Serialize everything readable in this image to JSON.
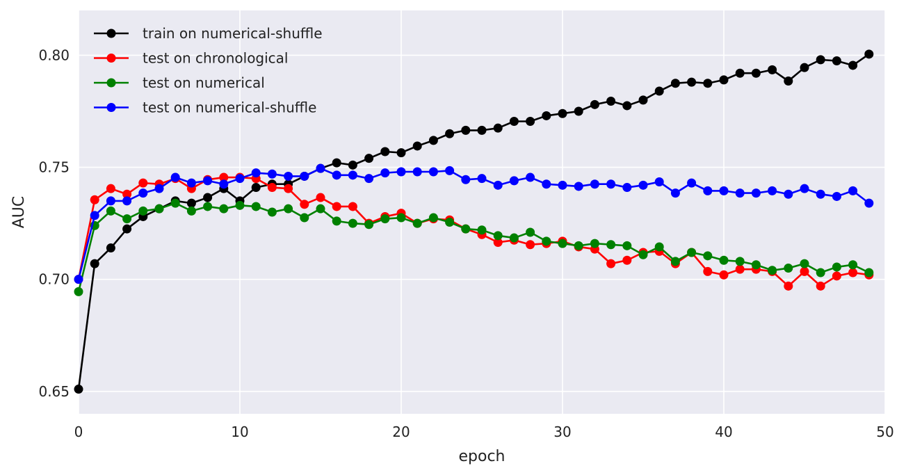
{
  "chart_data": {
    "type": "line",
    "xlabel": "epoch",
    "ylabel": "AUC",
    "xlim": [
      0,
      50
    ],
    "ylim": [
      0.64,
      0.82
    ],
    "xticks": [
      0,
      10,
      20,
      30,
      40,
      50
    ],
    "xtick_labels": [
      "0",
      "10",
      "20",
      "30",
      "40",
      "50"
    ],
    "yticks": [
      0.65,
      0.7,
      0.75,
      0.8
    ],
    "ytick_labels": [
      "0.65",
      "0.70",
      "0.75",
      "0.80"
    ],
    "grid": true,
    "legend_position": "top-left",
    "background": "#eaeaf2",
    "x": [
      0,
      1,
      2,
      3,
      4,
      5,
      6,
      7,
      8,
      9,
      10,
      11,
      12,
      13,
      14,
      15,
      16,
      17,
      18,
      19,
      20,
      21,
      22,
      23,
      24,
      25,
      26,
      27,
      28,
      29,
      30,
      31,
      32,
      33,
      34,
      35,
      36,
      37,
      38,
      39,
      40,
      41,
      42,
      43,
      44,
      45,
      46,
      47,
      48,
      49
    ],
    "series": [
      {
        "name": "train on numerical-shuffle",
        "color": "#000000",
        "values": [
          0.651,
          0.707,
          0.714,
          0.7225,
          0.728,
          0.7315,
          0.735,
          0.734,
          0.7365,
          0.7405,
          0.735,
          0.741,
          0.7425,
          0.7425,
          0.746,
          0.7495,
          0.752,
          0.751,
          0.754,
          0.757,
          0.7565,
          0.7595,
          0.762,
          0.765,
          0.7665,
          0.7665,
          0.7675,
          0.7705,
          0.7705,
          0.773,
          0.774,
          0.775,
          0.778,
          0.7795,
          0.7775,
          0.78,
          0.784,
          0.7875,
          0.788,
          0.7875,
          0.789,
          0.792,
          0.792,
          0.7935,
          0.7885,
          0.7945,
          0.798,
          0.7975,
          0.7955,
          0.8005
        ]
      },
      {
        "name": "test on chronological",
        "color": "#ff0000",
        "values": [
          0.7,
          0.7355,
          0.7405,
          0.738,
          0.743,
          0.7425,
          0.745,
          0.7405,
          0.7445,
          0.7455,
          0.7455,
          0.745,
          0.741,
          0.7405,
          0.7335,
          0.7365,
          0.7325,
          0.7325,
          0.725,
          0.728,
          0.7295,
          0.725,
          0.727,
          0.7265,
          0.7225,
          0.72,
          0.7165,
          0.7175,
          0.7155,
          0.716,
          0.717,
          0.7145,
          0.7135,
          0.707,
          0.7085,
          0.712,
          0.7125,
          0.707,
          0.712,
          0.7035,
          0.702,
          0.7045,
          0.7045,
          0.7035,
          0.697,
          0.7035,
          0.697,
          0.7015,
          0.703,
          0.702
        ]
      },
      {
        "name": "test on numerical",
        "color": "#008000",
        "values": [
          0.6945,
          0.724,
          0.7305,
          0.727,
          0.7305,
          0.7315,
          0.734,
          0.7305,
          0.7325,
          0.7315,
          0.733,
          0.7325,
          0.73,
          0.7315,
          0.7275,
          0.7315,
          0.726,
          0.725,
          0.7245,
          0.727,
          0.7275,
          0.725,
          0.7275,
          0.7255,
          0.7225,
          0.722,
          0.7195,
          0.7185,
          0.721,
          0.717,
          0.716,
          0.715,
          0.716,
          0.7155,
          0.715,
          0.711,
          0.7145,
          0.708,
          0.712,
          0.7105,
          0.7085,
          0.708,
          0.7065,
          0.704,
          0.705,
          0.707,
          0.703,
          0.7055,
          0.7065,
          0.703
        ]
      },
      {
        "name": "test on numerical-shuffle",
        "color": "#0000ff",
        "values": [
          0.7,
          0.7285,
          0.735,
          0.735,
          0.7385,
          0.7405,
          0.7455,
          0.743,
          0.744,
          0.7425,
          0.745,
          0.7475,
          0.747,
          0.746,
          0.746,
          0.7495,
          0.7465,
          0.7465,
          0.745,
          0.7475,
          0.748,
          0.748,
          0.748,
          0.7485,
          0.7445,
          0.745,
          0.742,
          0.744,
          0.7455,
          0.7425,
          0.742,
          0.7415,
          0.7425,
          0.7425,
          0.741,
          0.742,
          0.7435,
          0.7385,
          0.743,
          0.7395,
          0.7395,
          0.7385,
          0.7385,
          0.7395,
          0.738,
          0.7405,
          0.738,
          0.737,
          0.7395,
          0.734
        ]
      }
    ]
  }
}
